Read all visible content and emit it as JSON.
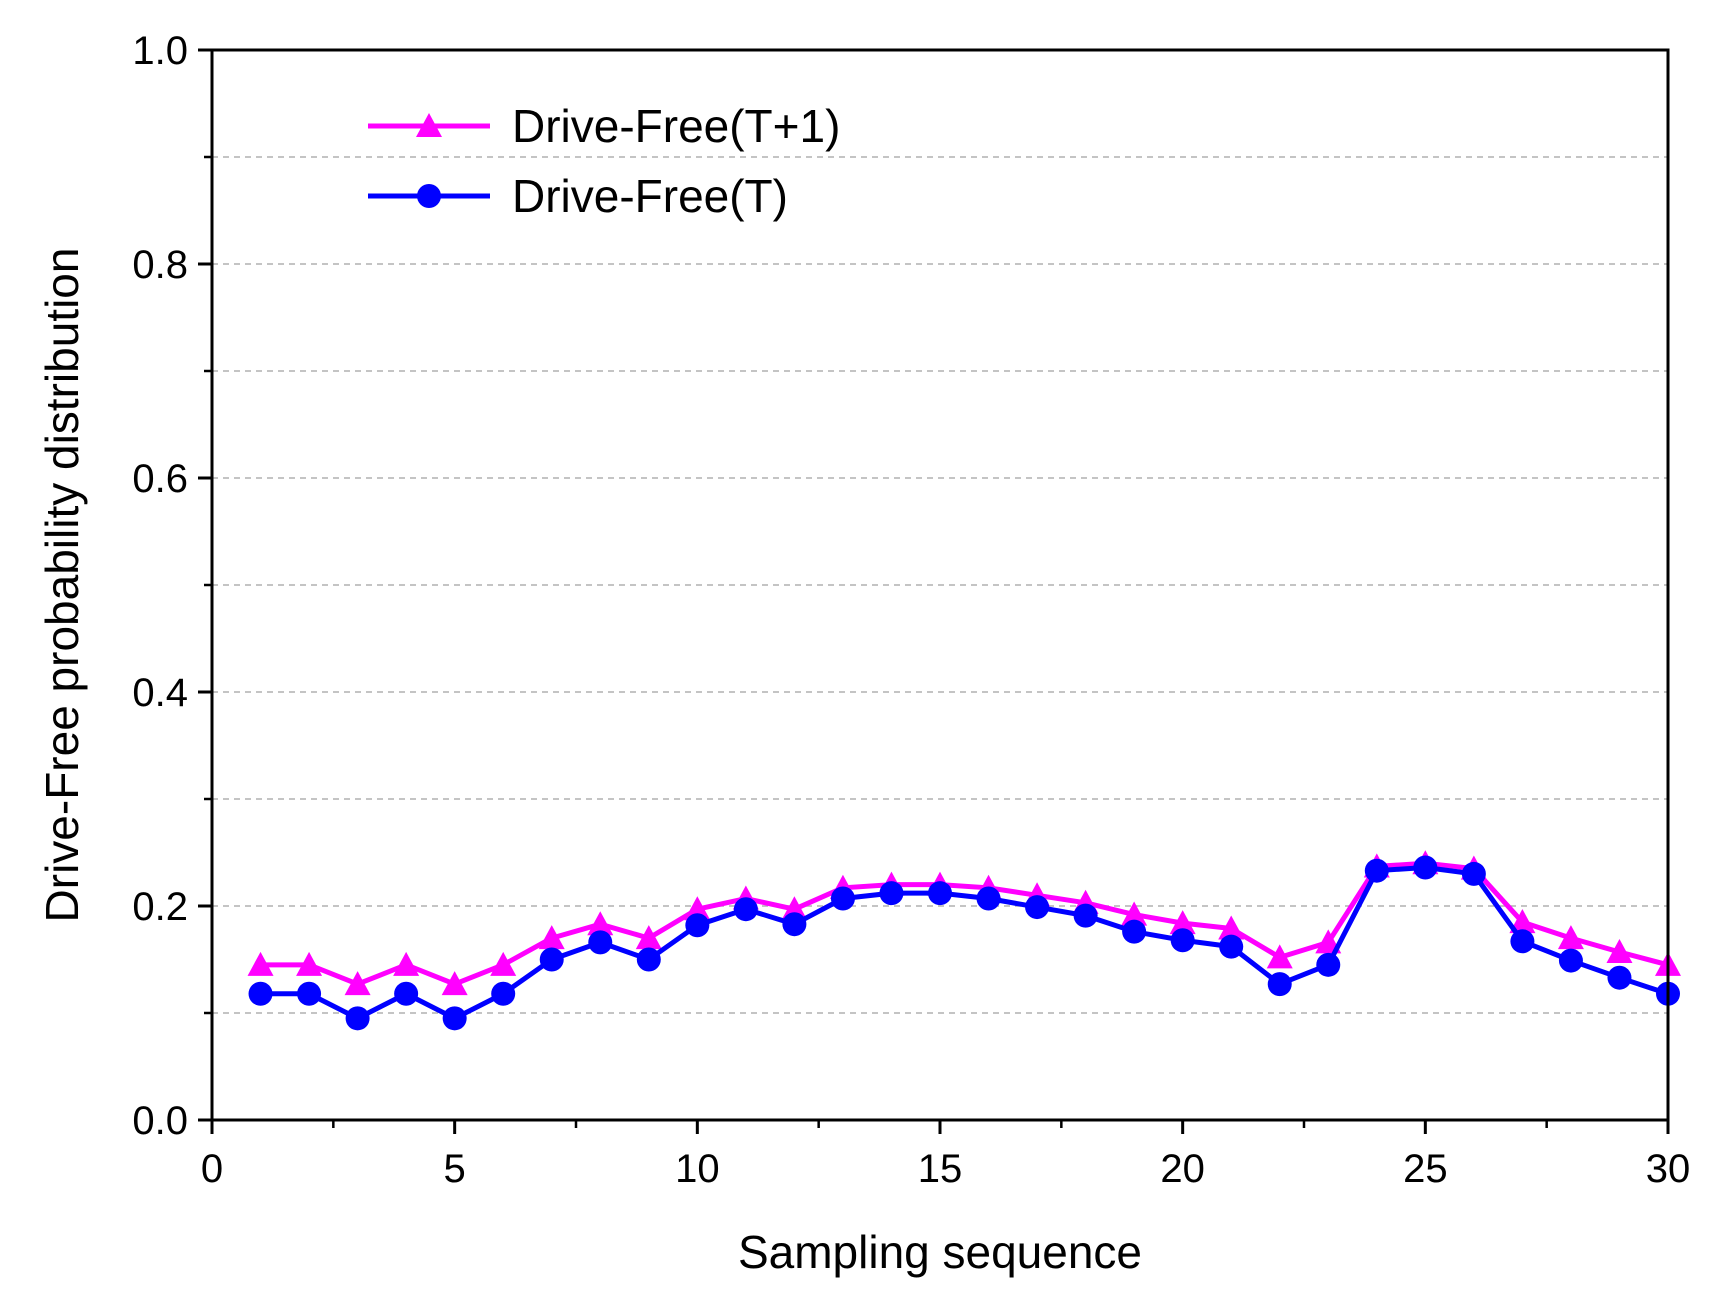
{
  "chart_data": {
    "type": "line",
    "title": "",
    "xlabel": "Sampling sequence",
    "ylabel": "Drive-Free probability distribution",
    "xlim": [
      0,
      30
    ],
    "ylim": [
      0.0,
      1.0
    ],
    "xticks": [
      0,
      5,
      10,
      15,
      20,
      25,
      30
    ],
    "xtick_labels": [
      "0",
      "5",
      "10",
      "15",
      "20",
      "25",
      "30"
    ],
    "xminor": 2.5,
    "yticks": [
      0.0,
      0.2,
      0.4,
      0.6,
      0.8,
      1.0
    ],
    "ytick_labels": [
      "0.0",
      "0.2",
      "0.4",
      "0.6",
      "0.8",
      "1.0"
    ],
    "yminor": 0.1,
    "grid": "horizontal dashed",
    "legend_position": "top-left",
    "x": [
      1,
      2,
      3,
      4,
      5,
      6,
      7,
      8,
      9,
      10,
      11,
      12,
      13,
      14,
      15,
      16,
      17,
      18,
      19,
      20,
      21,
      22,
      23,
      24,
      25,
      26,
      27,
      28,
      29,
      30
    ],
    "series": [
      {
        "name": "Drive-Free(T+1)",
        "color": "#ff00ff",
        "marker": "triangle",
        "values": [
          0.145,
          0.145,
          0.127,
          0.145,
          0.127,
          0.145,
          0.17,
          0.183,
          0.17,
          0.197,
          0.207,
          0.197,
          0.217,
          0.22,
          0.22,
          0.217,
          0.21,
          0.203,
          0.192,
          0.184,
          0.179,
          0.152,
          0.166,
          0.237,
          0.24,
          0.235,
          0.185,
          0.17,
          0.157,
          0.145
        ]
      },
      {
        "name": "Drive-Free(T)",
        "color": "#0000ff",
        "marker": "circle",
        "values": [
          0.118,
          0.118,
          0.095,
          0.118,
          0.095,
          0.118,
          0.15,
          0.166,
          0.15,
          0.182,
          0.197,
          0.183,
          0.207,
          0.212,
          0.212,
          0.207,
          0.199,
          0.191,
          0.176,
          0.168,
          0.162,
          0.127,
          0.145,
          0.233,
          0.236,
          0.23,
          0.167,
          0.149,
          0.133,
          0.118
        ]
      }
    ]
  }
}
